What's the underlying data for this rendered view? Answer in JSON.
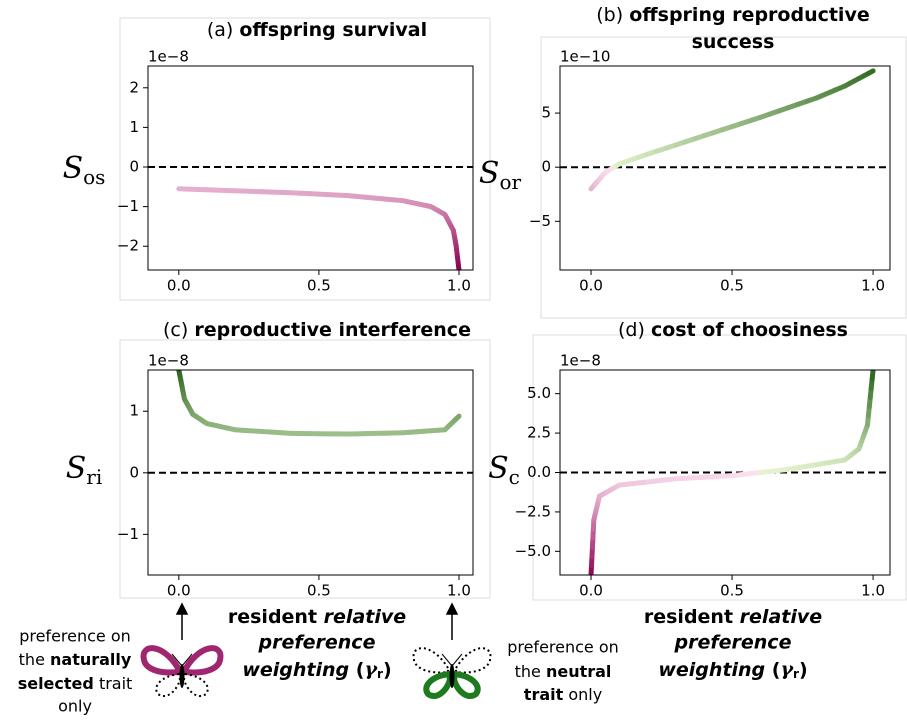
{
  "chart_data": [
    {
      "type": "line",
      "label": "(a)",
      "title": "offspring survival",
      "ylabel": "S",
      "ylabel_sub": "os",
      "offset_text": "1e−8",
      "x": [
        0,
        0.2,
        0.4,
        0.6,
        0.8,
        0.9,
        0.95,
        0.98,
        0.99,
        1.0
      ],
      "series": [
        {
          "values": [
            -0.55,
            -0.6,
            -0.65,
            -0.72,
            -0.85,
            -1.0,
            -1.2,
            -1.6,
            -2.0,
            -2.6
          ]
        }
      ],
      "xlim": [
        -0.11,
        1.05
      ],
      "xticks": [
        {
          "value": 0,
          "label": "0.0"
        },
        {
          "value": 0.5,
          "label": "0.5"
        },
        {
          "value": 1,
          "label": "1.0"
        }
      ],
      "ylim": [
        -2.6,
        2.55
      ],
      "yticks": [
        {
          "value": -2,
          "label": "−2"
        },
        {
          "value": -1,
          "label": "−1"
        },
        0,
        1,
        2
      ],
      "reference_line": {
        "y": 0,
        "style": "dashed"
      },
      "colormap": {
        "negative": [
          "#fde0ef",
          "#8e0152"
        ],
        "positive": [
          "#e6f5d0",
          "#276419"
        ]
      }
    },
    {
      "type": "line",
      "label": "(b)",
      "title": [
        "offspring reproductive",
        "success"
      ],
      "ylabel": "S",
      "ylabel_sub": "or",
      "offset_text": "1e−10",
      "x": [
        0,
        0.05,
        0.1,
        0.2,
        0.4,
        0.6,
        0.8,
        0.9,
        1.0
      ],
      "series": [
        {
          "values": [
            -2,
            -0.5,
            0.3,
            1.2,
            2.9,
            4.6,
            6.4,
            7.5,
            8.9
          ]
        }
      ],
      "xlim": [
        -0.11,
        1.06
      ],
      "xticks": [
        {
          "value": 0,
          "label": "0.0"
        },
        {
          "value": 0.5,
          "label": "0.5"
        },
        {
          "value": 1,
          "label": "1.0"
        }
      ],
      "ylim": [
        -9.5,
        9.35
      ],
      "yticks": [
        {
          "value": -5,
          "label": "−5"
        },
        0,
        5
      ],
      "reference_line": {
        "y": 0,
        "style": "dashed"
      },
      "colormap": {
        "negative": [
          "#fde0ef",
          "#8e0152"
        ],
        "positive": [
          "#e6f5d0",
          "#276419"
        ]
      }
    },
    {
      "type": "line",
      "label": "(c)",
      "title": "reproductive interference",
      "ylabel": "S",
      "ylabel_sub": "ri",
      "offset_text": "1e−8",
      "x": [
        0,
        0.02,
        0.05,
        0.1,
        0.2,
        0.4,
        0.6,
        0.8,
        0.95,
        1.0
      ],
      "series": [
        {
          "values": [
            1.67,
            1.2,
            0.95,
            0.8,
            0.7,
            0.64,
            0.63,
            0.65,
            0.7,
            0.92
          ]
        }
      ],
      "xlim": [
        -0.11,
        1.05
      ],
      "xticks": [
        {
          "value": 0,
          "label": "0.0"
        },
        {
          "value": 0.5,
          "label": "0.5"
        },
        {
          "value": 1,
          "label": "1.0"
        }
      ],
      "ylim": [
        -1.66,
        1.67
      ],
      "yticks": [
        {
          "value": -1,
          "label": "−1"
        },
        0,
        1
      ],
      "reference_line": {
        "y": 0,
        "style": "dashed"
      },
      "colormap": {
        "negative": [
          "#fde0ef",
          "#8e0152"
        ],
        "positive": [
          "#e6f5d0",
          "#276419"
        ]
      }
    },
    {
      "type": "line",
      "label": "(d)",
      "title": "cost of choosiness",
      "ylabel": "S",
      "ylabel_sub": "c",
      "offset_text": "1e−8",
      "x": [
        0,
        0.01,
        0.03,
        0.1,
        0.3,
        0.5,
        0.7,
        0.9,
        0.95,
        0.98,
        1.0
      ],
      "series": [
        {
          "values": [
            -6.5,
            -3,
            -1.5,
            -0.8,
            -0.4,
            -0.2,
            0.2,
            0.8,
            1.5,
            3,
            6.5
          ]
        }
      ],
      "xlim": [
        -0.11,
        1.06
      ],
      "xticks": [
        {
          "value": 0,
          "label": "0.0"
        },
        {
          "value": 0.5,
          "label": "0.5"
        },
        {
          "value": 1,
          "label": "1.0"
        }
      ],
      "ylim": [
        -6.5,
        6.5
      ],
      "yticks": [
        {
          "value": -5,
          "label": "−5.0"
        },
        {
          "value": -2.5,
          "label": "−2.5"
        },
        {
          "value": 0,
          "label": "0.0"
        },
        {
          "value": 2.5,
          "label": "2.5"
        },
        {
          "value": 5,
          "label": "5.0"
        }
      ],
      "reference_line": {
        "y": 0,
        "style": "dashed"
      },
      "colormap": {
        "negative": [
          "#fde0ef",
          "#8e0152"
        ],
        "positive": [
          "#e6f5d0",
          "#276419"
        ]
      }
    }
  ],
  "xlabel": [
    "resident",
    "relative",
    "preference",
    "weighting",
    "(",
    "γ",
    "r",
    ")"
  ],
  "left_annotation": [
    "preference on",
    "the",
    "naturally",
    "selected",
    "trait",
    "only"
  ],
  "right_annotation": [
    "preference on",
    "the",
    "neutral",
    "trait",
    "only"
  ]
}
